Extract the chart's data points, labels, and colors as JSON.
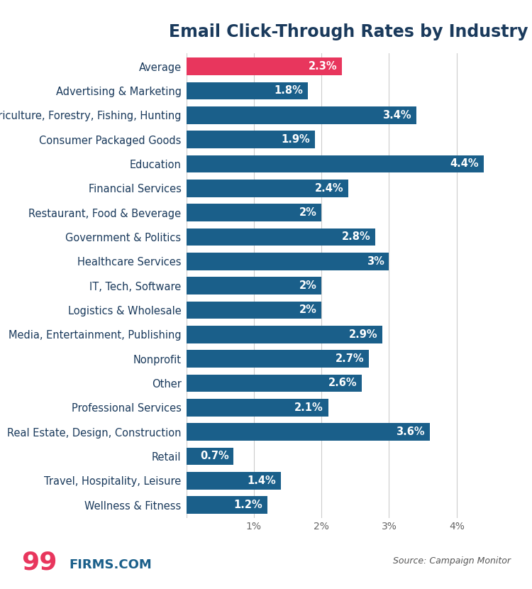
{
  "title": "Email Click-Through Rates by Industry",
  "categories": [
    "Average",
    "Advertising & Marketing",
    "Agriculture, Forestry, Fishing, Hunting",
    "Consumer Packaged Goods",
    "Education",
    "Financial Services",
    "Restaurant, Food & Beverage",
    "Government & Politics",
    "Healthcare Services",
    "IT, Tech, Software",
    "Logistics & Wholesale",
    "Media, Entertainment, Publishing",
    "Nonprofit",
    "Other",
    "Professional Services",
    "Real Estate, Design, Construction",
    "Retail",
    "Travel, Hospitality, Leisure",
    "Wellness & Fitness"
  ],
  "values": [
    2.3,
    1.8,
    3.4,
    1.9,
    4.4,
    2.4,
    2.0,
    2.8,
    3.0,
    2.0,
    2.0,
    2.9,
    2.7,
    2.6,
    2.1,
    3.6,
    0.7,
    1.4,
    1.2
  ],
  "bar_colors": [
    "#e8365d",
    "#1a5f8a",
    "#1a5f8a",
    "#1a5f8a",
    "#1a5f8a",
    "#1a5f8a",
    "#1a5f8a",
    "#1a5f8a",
    "#1a5f8a",
    "#1a5f8a",
    "#1a5f8a",
    "#1a5f8a",
    "#1a5f8a",
    "#1a5f8a",
    "#1a5f8a",
    "#1a5f8a",
    "#1a5f8a",
    "#1a5f8a",
    "#1a5f8a"
  ],
  "label_format": [
    "2.3%",
    "1.8%",
    "3.4%",
    "1.9%",
    "4.4%",
    "2.4%",
    "2%",
    "2.8%",
    "3%",
    "2%",
    "2%",
    "2.9%",
    "2.7%",
    "2.6%",
    "2.1%",
    "3.6%",
    "0.7%",
    "1.4%",
    "1.2%"
  ],
  "xlim": [
    0,
    4.8
  ],
  "xticks": [
    0,
    1,
    2,
    3,
    4
  ],
  "xtick_labels": [
    "",
    "1%",
    "2%",
    "3%",
    "4%"
  ],
  "background_color": "#ffffff",
  "title_fontsize": 17,
  "label_fontsize": 10.5,
  "tick_fontsize": 10,
  "category_fontsize": 10.5,
  "source_text": "Source: Campaign Monitor",
  "bar_height": 0.72
}
